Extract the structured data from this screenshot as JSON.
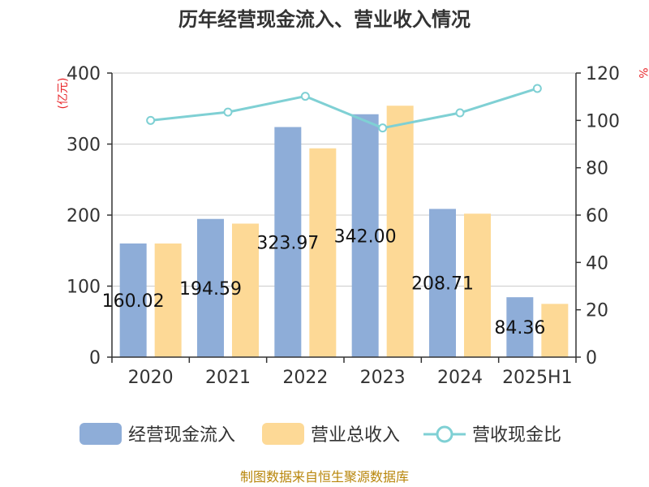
{
  "title": "历年经营现金流入、营业收入情况",
  "source_note": "制图数据来自恒生聚源数据库",
  "colors": {
    "cash_inflow": "#8eadd8",
    "revenue": "#fdd996",
    "ratio_line": "#7fd0d4",
    "axis": "#333333",
    "grid": "#cccccc",
    "unit_text": "#e8262a",
    "source_text": "#b8860b"
  },
  "chart_data": {
    "type": "bar",
    "title": "历年经营现金流入、营业收入情况",
    "categories": [
      "2020",
      "2021",
      "2022",
      "2023",
      "2024",
      "2025H1"
    ],
    "y_left": {
      "unit": "(亿元)",
      "range": [
        0,
        400
      ],
      "ticks": [
        0,
        100,
        200,
        300,
        400
      ]
    },
    "y_right": {
      "unit": "%",
      "range": [
        0,
        120
      ],
      "ticks": [
        0,
        20,
        40,
        60,
        80,
        100,
        120
      ]
    },
    "grid": true,
    "legend_position": "bottom",
    "series": [
      {
        "name": "经营现金流入",
        "type": "bar",
        "axis": "left",
        "color": "#8eadd8",
        "values": [
          160.02,
          194.59,
          323.97,
          342.0,
          208.71,
          84.36
        ],
        "data_labels": [
          "160.02",
          "194.59",
          "323.97",
          "342.00",
          "208.71",
          "84.36"
        ]
      },
      {
        "name": "营业总收入",
        "type": "bar",
        "axis": "left",
        "color": "#fdd996",
        "values": [
          160,
          188,
          294,
          354,
          202,
          75
        ]
      },
      {
        "name": "营收现金比",
        "type": "line",
        "axis": "right",
        "color": "#7fd0d4",
        "values": [
          100,
          103.5,
          110.2,
          96.8,
          103.2,
          113.5
        ]
      }
    ]
  }
}
